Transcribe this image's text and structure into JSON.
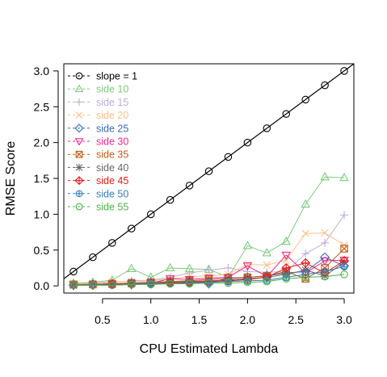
{
  "chart_data": {
    "type": "line",
    "title": "",
    "xlabel": "CPU Estimated Lambda",
    "ylabel": "RMSE Score",
    "xlim": [
      0.1,
      3.1
    ],
    "ylim": [
      -0.1,
      3.1
    ],
    "xticks": [
      0.5,
      1.0,
      1.5,
      2.0,
      2.5,
      3.0
    ],
    "xtick_labels": [
      "0.5",
      "1.0",
      "1.5",
      "2.0",
      "2.5",
      "3.0"
    ],
    "yticks": [
      0.0,
      0.5,
      1.0,
      1.5,
      2.0,
      2.5,
      3.0
    ],
    "ytick_labels": [
      "0.0",
      "0.5",
      "1.0",
      "1.5",
      "2.0",
      "2.5",
      "3.0"
    ],
    "grid": false,
    "legend_position": "top-left",
    "x": [
      0.2,
      0.4,
      0.6,
      0.8,
      1.0,
      1.2,
      1.4,
      1.6,
      1.8,
      2.0,
      2.2,
      2.4,
      2.6,
      2.8,
      3.0
    ],
    "reference_line": {
      "name": "slope = 1",
      "color": "#000000",
      "marker": "circle",
      "slope": 1,
      "intercept": 0
    },
    "series": [
      {
        "name": "side 10",
        "color": "#7fc97f",
        "marker": "triangle-up",
        "values": [
          0.04,
          0.05,
          0.08,
          0.24,
          0.12,
          0.25,
          0.24,
          0.23,
          0.12,
          0.56,
          0.46,
          0.62,
          1.14,
          1.52,
          1.51
        ]
      },
      {
        "name": "side 15",
        "color": "#beaed4",
        "marker": "plus",
        "values": [
          0.03,
          0.03,
          0.05,
          0.07,
          0.08,
          0.12,
          0.18,
          0.22,
          0.25,
          0.2,
          0.19,
          0.2,
          0.45,
          0.6,
          0.99
        ]
      },
      {
        "name": "side 20",
        "color": "#fdc086",
        "marker": "x",
        "values": [
          0.03,
          0.04,
          0.06,
          0.06,
          0.07,
          0.1,
          0.13,
          0.14,
          0.16,
          0.3,
          0.29,
          0.36,
          0.73,
          0.74,
          0.57
        ]
      },
      {
        "name": "side 25",
        "color": "#386cb0",
        "marker": "diamond",
        "values": [
          0.01,
          0.02,
          0.03,
          0.04,
          0.05,
          0.06,
          0.07,
          0.03,
          0.11,
          0.12,
          0.14,
          0.18,
          0.2,
          0.4,
          0.28
        ]
      },
      {
        "name": "side 30",
        "color": "#e7298a",
        "marker": "triangle-down",
        "values": [
          0.01,
          0.01,
          0.02,
          0.03,
          0.04,
          0.1,
          0.09,
          0.11,
          0.12,
          0.28,
          0.13,
          0.43,
          0.18,
          0.35,
          0.36
        ]
      },
      {
        "name": "side 35",
        "color": "#bf5b17",
        "marker": "square-x",
        "values": [
          0.02,
          0.02,
          0.03,
          0.04,
          0.05,
          0.06,
          0.07,
          0.09,
          0.1,
          0.12,
          0.14,
          0.2,
          0.1,
          0.25,
          0.52
        ]
      },
      {
        "name": "side 40",
        "color": "#666666",
        "marker": "asterisk",
        "values": [
          0.01,
          0.02,
          0.02,
          0.03,
          0.04,
          0.05,
          0.06,
          0.07,
          0.08,
          0.1,
          0.12,
          0.16,
          0.22,
          0.14,
          0.33
        ]
      },
      {
        "name": "side 45",
        "color": "#e31a1c",
        "marker": "diamond-plus",
        "values": [
          0.01,
          0.01,
          0.02,
          0.02,
          0.03,
          0.04,
          0.05,
          0.06,
          0.07,
          0.09,
          0.12,
          0.25,
          0.32,
          0.18,
          0.35
        ]
      },
      {
        "name": "side 50",
        "color": "#377eb8",
        "marker": "circle-plus",
        "values": [
          0.01,
          0.01,
          0.01,
          0.02,
          0.03,
          0.03,
          0.04,
          0.05,
          0.06,
          0.07,
          0.08,
          0.12,
          0.16,
          0.2,
          0.27
        ]
      },
      {
        "name": "side 55",
        "color": "#4daf4a",
        "marker": "circle",
        "values": [
          0.01,
          0.01,
          0.01,
          0.02,
          0.02,
          0.03,
          0.03,
          0.04,
          0.04,
          0.05,
          0.06,
          0.1,
          0.12,
          0.13,
          0.16
        ]
      }
    ]
  }
}
